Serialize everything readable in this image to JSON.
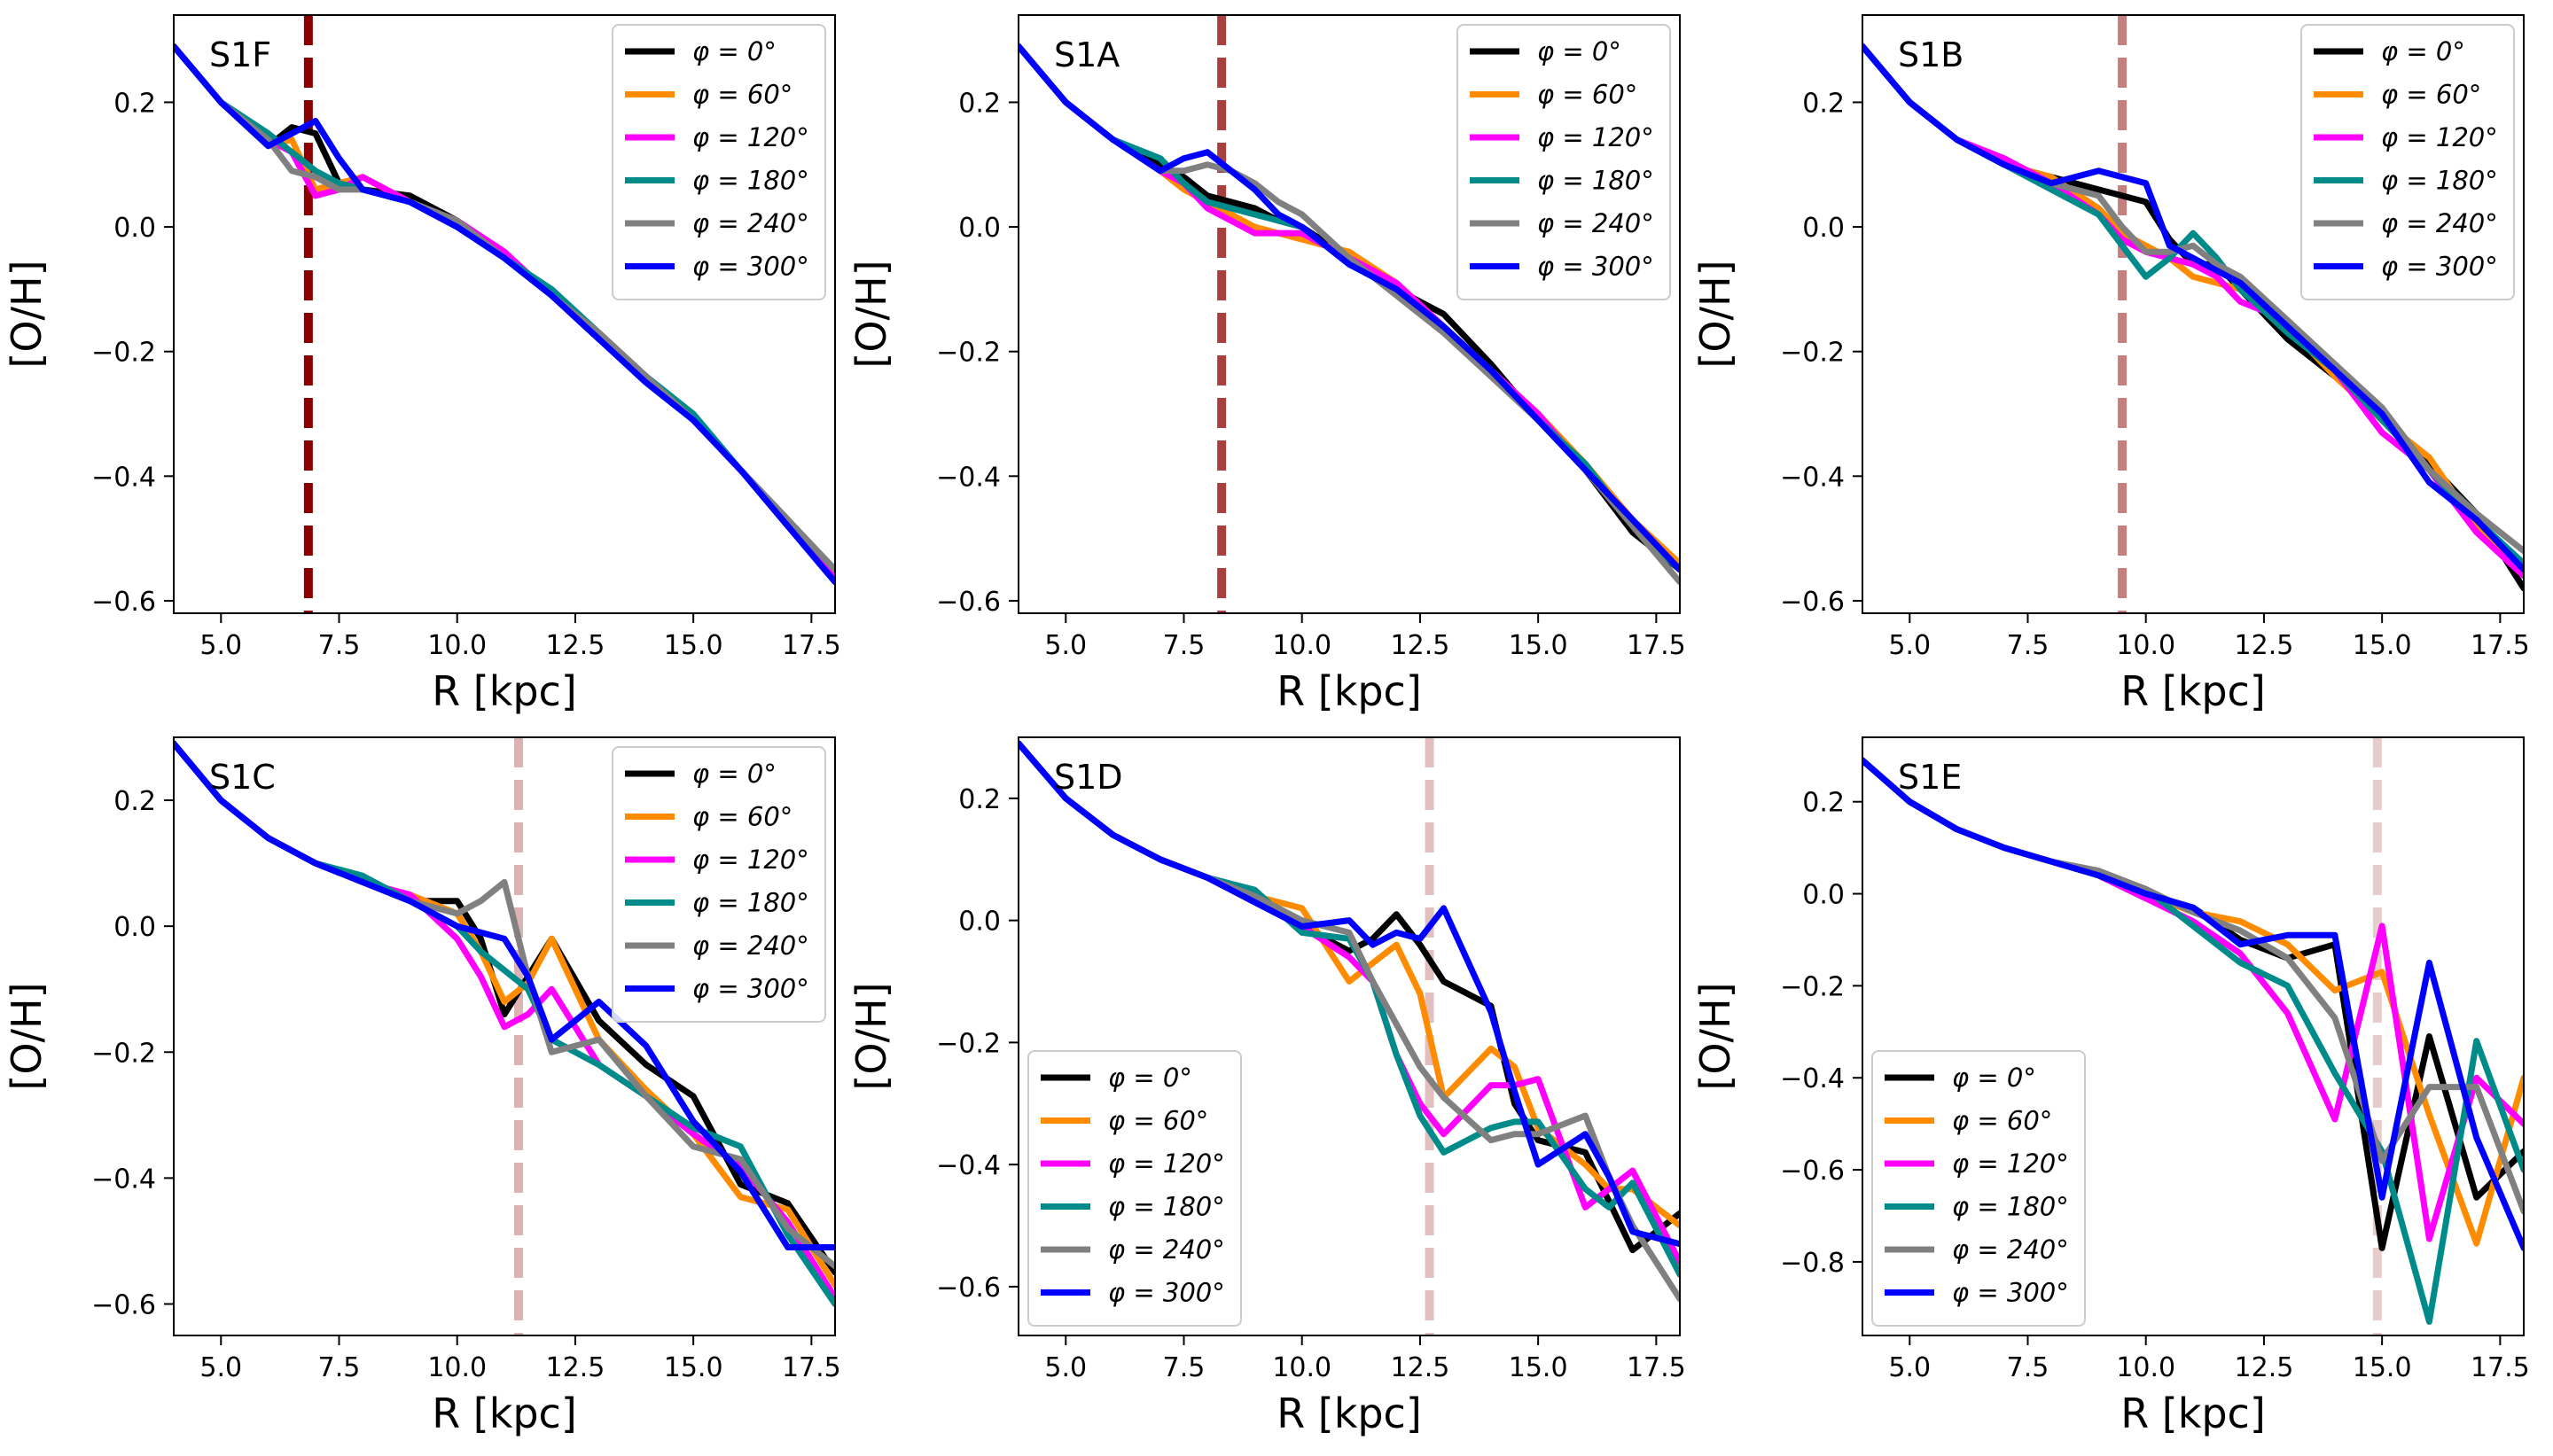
{
  "figure": {
    "series_styles": [
      {
        "name": "φ = 0°",
        "color": "#000000"
      },
      {
        "name": "φ = 60°",
        "color": "#ff8c00"
      },
      {
        "name": "φ = 120°",
        "color": "#ff00ff"
      },
      {
        "name": "φ = 180°",
        "color": "#008b8b"
      },
      {
        "name": "φ = 240°",
        "color": "#808080"
      },
      {
        "name": "φ = 300°",
        "color": "#0000ff"
      }
    ]
  },
  "chart_data": [
    {
      "type": "line",
      "panel_label": "S1F",
      "xlabel": "R [kpc]",
      "ylabel": "[O/H]",
      "xlim": [
        4.0,
        18.0
      ],
      "ylim": [
        -0.62,
        0.34
      ],
      "xticks": [
        "5.0",
        "7.5",
        "10.0",
        "12.5",
        "15.0",
        "17.5"
      ],
      "yticks": [
        "0.2",
        "0.0",
        "−0.2",
        "−0.4",
        "−0.6"
      ],
      "legend_position": "upper right",
      "vline": {
        "x": 6.85,
        "color": "#8b0000",
        "opacity": 1.0
      },
      "x": [
        4,
        5,
        6,
        6.5,
        7,
        7.5,
        8,
        9,
        10,
        11,
        12,
        13,
        14,
        15,
        16,
        17,
        18
      ],
      "series": [
        {
          "name": "φ = 0°",
          "values": [
            0.29,
            0.2,
            0.13,
            0.16,
            0.15,
            0.07,
            0.06,
            0.05,
            0.01,
            -0.05,
            -0.11,
            -0.18,
            -0.24,
            -0.31,
            -0.39,
            -0.47,
            -0.56
          ]
        },
        {
          "name": "φ = 60°",
          "values": [
            0.29,
            0.2,
            0.13,
            0.14,
            0.06,
            0.07,
            0.08,
            0.04,
            0.01,
            -0.04,
            -0.11,
            -0.17,
            -0.24,
            -0.31,
            -0.39,
            -0.48,
            -0.56
          ]
        },
        {
          "name": "φ = 120°",
          "values": [
            0.29,
            0.2,
            0.14,
            0.12,
            0.05,
            0.06,
            0.08,
            0.04,
            0.01,
            -0.04,
            -0.11,
            -0.17,
            -0.24,
            -0.31,
            -0.39,
            -0.47,
            -0.56
          ]
        },
        {
          "name": "φ = 180°",
          "values": [
            0.29,
            0.2,
            0.15,
            0.12,
            0.09,
            0.07,
            0.06,
            0.04,
            0.0,
            -0.05,
            -0.1,
            -0.17,
            -0.24,
            -0.3,
            -0.39,
            -0.47,
            -0.55
          ]
        },
        {
          "name": "φ = 240°",
          "values": [
            0.29,
            0.2,
            0.14,
            0.09,
            0.08,
            0.06,
            0.06,
            0.04,
            0.01,
            -0.05,
            -0.11,
            -0.17,
            -0.24,
            -0.31,
            -0.39,
            -0.47,
            -0.55
          ]
        },
        {
          "name": "φ = 300°",
          "values": [
            0.29,
            0.2,
            0.13,
            0.15,
            0.17,
            0.11,
            0.06,
            0.04,
            0.0,
            -0.05,
            -0.11,
            -0.18,
            -0.25,
            -0.31,
            -0.39,
            -0.48,
            -0.57
          ]
        }
      ]
    },
    {
      "type": "line",
      "panel_label": "S1A",
      "xlabel": "R [kpc]",
      "ylabel": "[O/H]",
      "xlim": [
        4.0,
        18.0
      ],
      "ylim": [
        -0.62,
        0.34
      ],
      "xticks": [
        "5.0",
        "7.5",
        "10.0",
        "12.5",
        "15.0",
        "17.5"
      ],
      "yticks": [
        "0.2",
        "0.0",
        "−0.2",
        "−0.4",
        "−0.6"
      ],
      "legend_position": "upper right",
      "vline": {
        "x": 8.3,
        "color": "#8b0000",
        "opacity": 0.75
      },
      "x": [
        4,
        5,
        6,
        7,
        7.5,
        8,
        8.5,
        9,
        9.5,
        10,
        11,
        12,
        13,
        14,
        15,
        16,
        17,
        18
      ],
      "series": [
        {
          "name": "φ = 0°",
          "values": [
            0.29,
            0.2,
            0.14,
            0.1,
            0.08,
            0.05,
            0.04,
            0.03,
            0.01,
            0.0,
            -0.05,
            -0.1,
            -0.14,
            -0.22,
            -0.31,
            -0.39,
            -0.49,
            -0.55
          ]
        },
        {
          "name": "φ = 60°",
          "values": [
            0.29,
            0.2,
            0.14,
            0.09,
            0.06,
            0.04,
            0.02,
            0.0,
            -0.01,
            -0.02,
            -0.04,
            -0.09,
            -0.16,
            -0.23,
            -0.3,
            -0.38,
            -0.47,
            -0.54
          ]
        },
        {
          "name": "φ = 120°",
          "values": [
            0.29,
            0.2,
            0.14,
            0.09,
            0.07,
            0.03,
            0.01,
            -0.01,
            -0.01,
            -0.01,
            -0.05,
            -0.09,
            -0.16,
            -0.23,
            -0.3,
            -0.39,
            -0.47,
            -0.55
          ]
        },
        {
          "name": "φ = 180°",
          "values": [
            0.29,
            0.2,
            0.14,
            0.11,
            0.07,
            0.04,
            0.03,
            0.02,
            0.01,
            0.0,
            -0.06,
            -0.1,
            -0.16,
            -0.23,
            -0.31,
            -0.38,
            -0.48,
            -0.55
          ]
        },
        {
          "name": "φ = 240°",
          "values": [
            0.29,
            0.2,
            0.14,
            0.09,
            0.09,
            0.1,
            0.09,
            0.07,
            0.04,
            0.02,
            -0.05,
            -0.11,
            -0.17,
            -0.24,
            -0.31,
            -0.39,
            -0.48,
            -0.57
          ]
        },
        {
          "name": "φ = 300°",
          "values": [
            0.29,
            0.2,
            0.14,
            0.09,
            0.11,
            0.12,
            0.09,
            0.06,
            0.02,
            0.0,
            -0.06,
            -0.1,
            -0.16,
            -0.23,
            -0.31,
            -0.39,
            -0.47,
            -0.55
          ]
        }
      ]
    },
    {
      "type": "line",
      "panel_label": "S1B",
      "xlabel": "R [kpc]",
      "ylabel": "[O/H]",
      "xlim": [
        4.0,
        18.0
      ],
      "ylim": [
        -0.62,
        0.34
      ],
      "xticks": [
        "5.0",
        "7.5",
        "10.0",
        "12.5",
        "15.0",
        "17.5"
      ],
      "yticks": [
        "0.2",
        "0.0",
        "−0.2",
        "−0.4",
        "−0.6"
      ],
      "legend_position": "upper right",
      "vline": {
        "x": 9.5,
        "color": "#8b0000",
        "opacity": 0.5
      },
      "x": [
        4,
        5,
        6,
        7,
        8,
        9,
        9.5,
        10,
        10.5,
        11,
        11.5,
        12,
        13,
        14,
        15,
        16,
        17,
        18
      ],
      "series": [
        {
          "name": "φ = 0°",
          "values": [
            0.29,
            0.2,
            0.14,
            0.1,
            0.08,
            0.06,
            0.05,
            0.04,
            -0.02,
            -0.06,
            -0.06,
            -0.1,
            -0.18,
            -0.24,
            -0.3,
            -0.38,
            -0.46,
            -0.58
          ]
        },
        {
          "name": "φ = 60°",
          "values": [
            0.29,
            0.2,
            0.14,
            0.1,
            0.08,
            0.03,
            -0.01,
            -0.03,
            -0.05,
            -0.08,
            -0.09,
            -0.1,
            -0.16,
            -0.24,
            -0.31,
            -0.37,
            -0.48,
            -0.56
          ]
        },
        {
          "name": "φ = 120°",
          "values": [
            0.29,
            0.2,
            0.14,
            0.11,
            0.07,
            0.02,
            -0.02,
            -0.04,
            -0.05,
            -0.06,
            -0.08,
            -0.12,
            -0.15,
            -0.23,
            -0.33,
            -0.39,
            -0.49,
            -0.56
          ]
        },
        {
          "name": "φ = 180°",
          "values": [
            0.29,
            0.2,
            0.14,
            0.1,
            0.06,
            0.02,
            -0.03,
            -0.08,
            -0.05,
            -0.01,
            -0.05,
            -0.1,
            -0.17,
            -0.23,
            -0.31,
            -0.39,
            -0.47,
            -0.54
          ]
        },
        {
          "name": "φ = 240°",
          "values": [
            0.29,
            0.2,
            0.14,
            0.1,
            0.07,
            0.05,
            0.0,
            -0.04,
            -0.04,
            -0.03,
            -0.06,
            -0.08,
            -0.15,
            -0.22,
            -0.29,
            -0.39,
            -0.46,
            -0.52
          ]
        },
        {
          "name": "φ = 300°",
          "values": [
            0.29,
            0.2,
            0.14,
            0.1,
            0.07,
            0.09,
            0.08,
            0.07,
            -0.03,
            -0.05,
            -0.07,
            -0.09,
            -0.16,
            -0.23,
            -0.3,
            -0.41,
            -0.47,
            -0.55
          ]
        }
      ]
    },
    {
      "type": "line",
      "panel_label": "S1C",
      "xlabel": "R [kpc]",
      "ylabel": "[O/H]",
      "xlim": [
        4.0,
        18.0
      ],
      "ylim": [
        -0.65,
        0.3
      ],
      "xticks": [
        "5.0",
        "7.5",
        "10.0",
        "12.5",
        "15.0",
        "17.5"
      ],
      "yticks": [
        "0.2",
        "0.0",
        "−0.2",
        "−0.4",
        "−0.6"
      ],
      "legend_position": "upper right",
      "vline": {
        "x": 11.3,
        "color": "#8b0000",
        "opacity": 0.3
      },
      "x": [
        4,
        5,
        6,
        7,
        8,
        9,
        10,
        10.5,
        11,
        11.5,
        12,
        13,
        14,
        15,
        16,
        17,
        18
      ],
      "series": [
        {
          "name": "φ = 0°",
          "values": [
            0.29,
            0.2,
            0.14,
            0.1,
            0.07,
            0.04,
            0.04,
            -0.02,
            -0.14,
            -0.08,
            -0.02,
            -0.15,
            -0.22,
            -0.27,
            -0.41,
            -0.44,
            -0.55
          ]
        },
        {
          "name": "φ = 60°",
          "values": [
            0.29,
            0.2,
            0.14,
            0.1,
            0.07,
            0.05,
            0.02,
            -0.04,
            -0.12,
            -0.09,
            -0.02,
            -0.18,
            -0.26,
            -0.33,
            -0.43,
            -0.45,
            -0.57
          ]
        },
        {
          "name": "φ = 120°",
          "values": [
            0.29,
            0.2,
            0.14,
            0.1,
            0.07,
            0.05,
            -0.02,
            -0.08,
            -0.16,
            -0.14,
            -0.1,
            -0.22,
            -0.27,
            -0.33,
            -0.38,
            -0.47,
            -0.59
          ]
        },
        {
          "name": "φ = 180°",
          "values": [
            0.29,
            0.2,
            0.14,
            0.1,
            0.08,
            0.04,
            0.0,
            -0.04,
            -0.07,
            -0.1,
            -0.18,
            -0.22,
            -0.27,
            -0.32,
            -0.35,
            -0.49,
            -0.6
          ]
        },
        {
          "name": "φ = 240°",
          "values": [
            0.29,
            0.2,
            0.14,
            0.1,
            0.07,
            0.04,
            0.02,
            0.04,
            0.07,
            -0.08,
            -0.2,
            -0.18,
            -0.27,
            -0.35,
            -0.37,
            -0.48,
            -0.54
          ]
        },
        {
          "name": "φ = 300°",
          "values": [
            0.29,
            0.2,
            0.14,
            0.1,
            0.07,
            0.04,
            0.0,
            -0.01,
            -0.02,
            -0.08,
            -0.18,
            -0.12,
            -0.19,
            -0.31,
            -0.39,
            -0.51,
            -0.51
          ]
        }
      ]
    },
    {
      "type": "line",
      "panel_label": "S1D",
      "xlabel": "R [kpc]",
      "ylabel": "[O/H]",
      "xlim": [
        4.0,
        18.0
      ],
      "ylim": [
        -0.68,
        0.3
      ],
      "xticks": [
        "5.0",
        "7.5",
        "10.0",
        "12.5",
        "15.0",
        "17.5"
      ],
      "yticks": [
        "0.2",
        "0.0",
        "−0.2",
        "−0.4",
        "−0.6"
      ],
      "legend_position": "lower left",
      "vline": {
        "x": 12.7,
        "color": "#8b0000",
        "opacity": 0.25
      },
      "x": [
        4,
        5,
        6,
        7,
        8,
        9,
        10,
        11,
        11.5,
        12,
        12.5,
        13,
        14,
        14.5,
        15,
        16,
        16.5,
        17,
        18
      ],
      "series": [
        {
          "name": "φ = 0°",
          "values": [
            0.29,
            0.2,
            0.14,
            0.1,
            0.07,
            0.03,
            -0.01,
            -0.05,
            -0.03,
            0.01,
            -0.04,
            -0.1,
            -0.14,
            -0.3,
            -0.36,
            -0.38,
            -0.46,
            -0.54,
            -0.48
          ]
        },
        {
          "name": "φ = 60°",
          "values": [
            0.29,
            0.2,
            0.14,
            0.1,
            0.07,
            0.04,
            0.02,
            -0.1,
            -0.07,
            -0.04,
            -0.12,
            -0.29,
            -0.21,
            -0.24,
            -0.34,
            -0.4,
            -0.44,
            -0.44,
            -0.5
          ]
        },
        {
          "name": "φ = 120°",
          "values": [
            0.29,
            0.2,
            0.14,
            0.1,
            0.07,
            0.04,
            -0.01,
            -0.06,
            -0.1,
            -0.22,
            -0.3,
            -0.35,
            -0.27,
            -0.27,
            -0.26,
            -0.47,
            -0.44,
            -0.41,
            -0.56
          ]
        },
        {
          "name": "φ = 180°",
          "values": [
            0.29,
            0.2,
            0.14,
            0.1,
            0.07,
            0.05,
            -0.02,
            -0.03,
            -0.1,
            -0.22,
            -0.32,
            -0.38,
            -0.34,
            -0.33,
            -0.33,
            -0.44,
            -0.47,
            -0.43,
            -0.58
          ]
        },
        {
          "name": "φ = 240°",
          "values": [
            0.29,
            0.2,
            0.14,
            0.1,
            0.07,
            0.04,
            0.0,
            -0.02,
            -0.1,
            -0.17,
            -0.24,
            -0.29,
            -0.36,
            -0.35,
            -0.35,
            -0.32,
            -0.42,
            -0.5,
            -0.62
          ]
        },
        {
          "name": "φ = 300°",
          "values": [
            0.29,
            0.2,
            0.14,
            0.1,
            0.07,
            0.03,
            -0.01,
            0.0,
            -0.04,
            -0.02,
            -0.03,
            0.02,
            -0.15,
            -0.28,
            -0.4,
            -0.35,
            -0.42,
            -0.51,
            -0.53
          ]
        }
      ]
    },
    {
      "type": "line",
      "panel_label": "S1E",
      "xlabel": "R [kpc]",
      "ylabel": "[O/H]",
      "xlim": [
        4.0,
        18.0
      ],
      "ylim": [
        -0.96,
        0.34
      ],
      "xticks": [
        "5.0",
        "7.5",
        "10.0",
        "12.5",
        "15.0",
        "17.5"
      ],
      "yticks": [
        "0.2",
        "0.0",
        "−0.2",
        "−0.4",
        "−0.6",
        "−0.8"
      ],
      "legend_position": "lower left",
      "vline": {
        "x": 14.9,
        "color": "#8b0000",
        "opacity": 0.2
      },
      "x": [
        4,
        5,
        6,
        7,
        8,
        9,
        10,
        11,
        12,
        13,
        14,
        15,
        16,
        17,
        18
      ],
      "series": [
        {
          "name": "φ = 0°",
          "values": [
            0.29,
            0.2,
            0.14,
            0.1,
            0.07,
            0.04,
            -0.01,
            -0.03,
            -0.1,
            -0.14,
            -0.11,
            -0.77,
            -0.31,
            -0.66,
            -0.56
          ]
        },
        {
          "name": "φ = 60°",
          "values": [
            0.29,
            0.2,
            0.14,
            0.1,
            0.07,
            0.04,
            0.0,
            -0.04,
            -0.06,
            -0.11,
            -0.21,
            -0.17,
            -0.48,
            -0.76,
            -0.4
          ]
        },
        {
          "name": "φ = 120°",
          "values": [
            0.29,
            0.2,
            0.14,
            0.1,
            0.07,
            0.04,
            -0.01,
            -0.06,
            -0.13,
            -0.26,
            -0.49,
            -0.07,
            -0.75,
            -0.4,
            -0.5
          ]
        },
        {
          "name": "φ = 180°",
          "values": [
            0.29,
            0.2,
            0.14,
            0.1,
            0.07,
            0.04,
            0.01,
            -0.07,
            -0.15,
            -0.2,
            -0.39,
            -0.56,
            -0.93,
            -0.32,
            -0.6
          ]
        },
        {
          "name": "φ = 240°",
          "values": [
            0.29,
            0.2,
            0.14,
            0.1,
            0.07,
            0.05,
            0.01,
            -0.04,
            -0.08,
            -0.14,
            -0.27,
            -0.58,
            -0.42,
            -0.42,
            -0.69
          ]
        },
        {
          "name": "φ = 300°",
          "values": [
            0.29,
            0.2,
            0.14,
            0.1,
            0.07,
            0.04,
            0.0,
            -0.03,
            -0.11,
            -0.09,
            -0.09,
            -0.66,
            -0.15,
            -0.53,
            -0.77
          ]
        }
      ]
    }
  ]
}
